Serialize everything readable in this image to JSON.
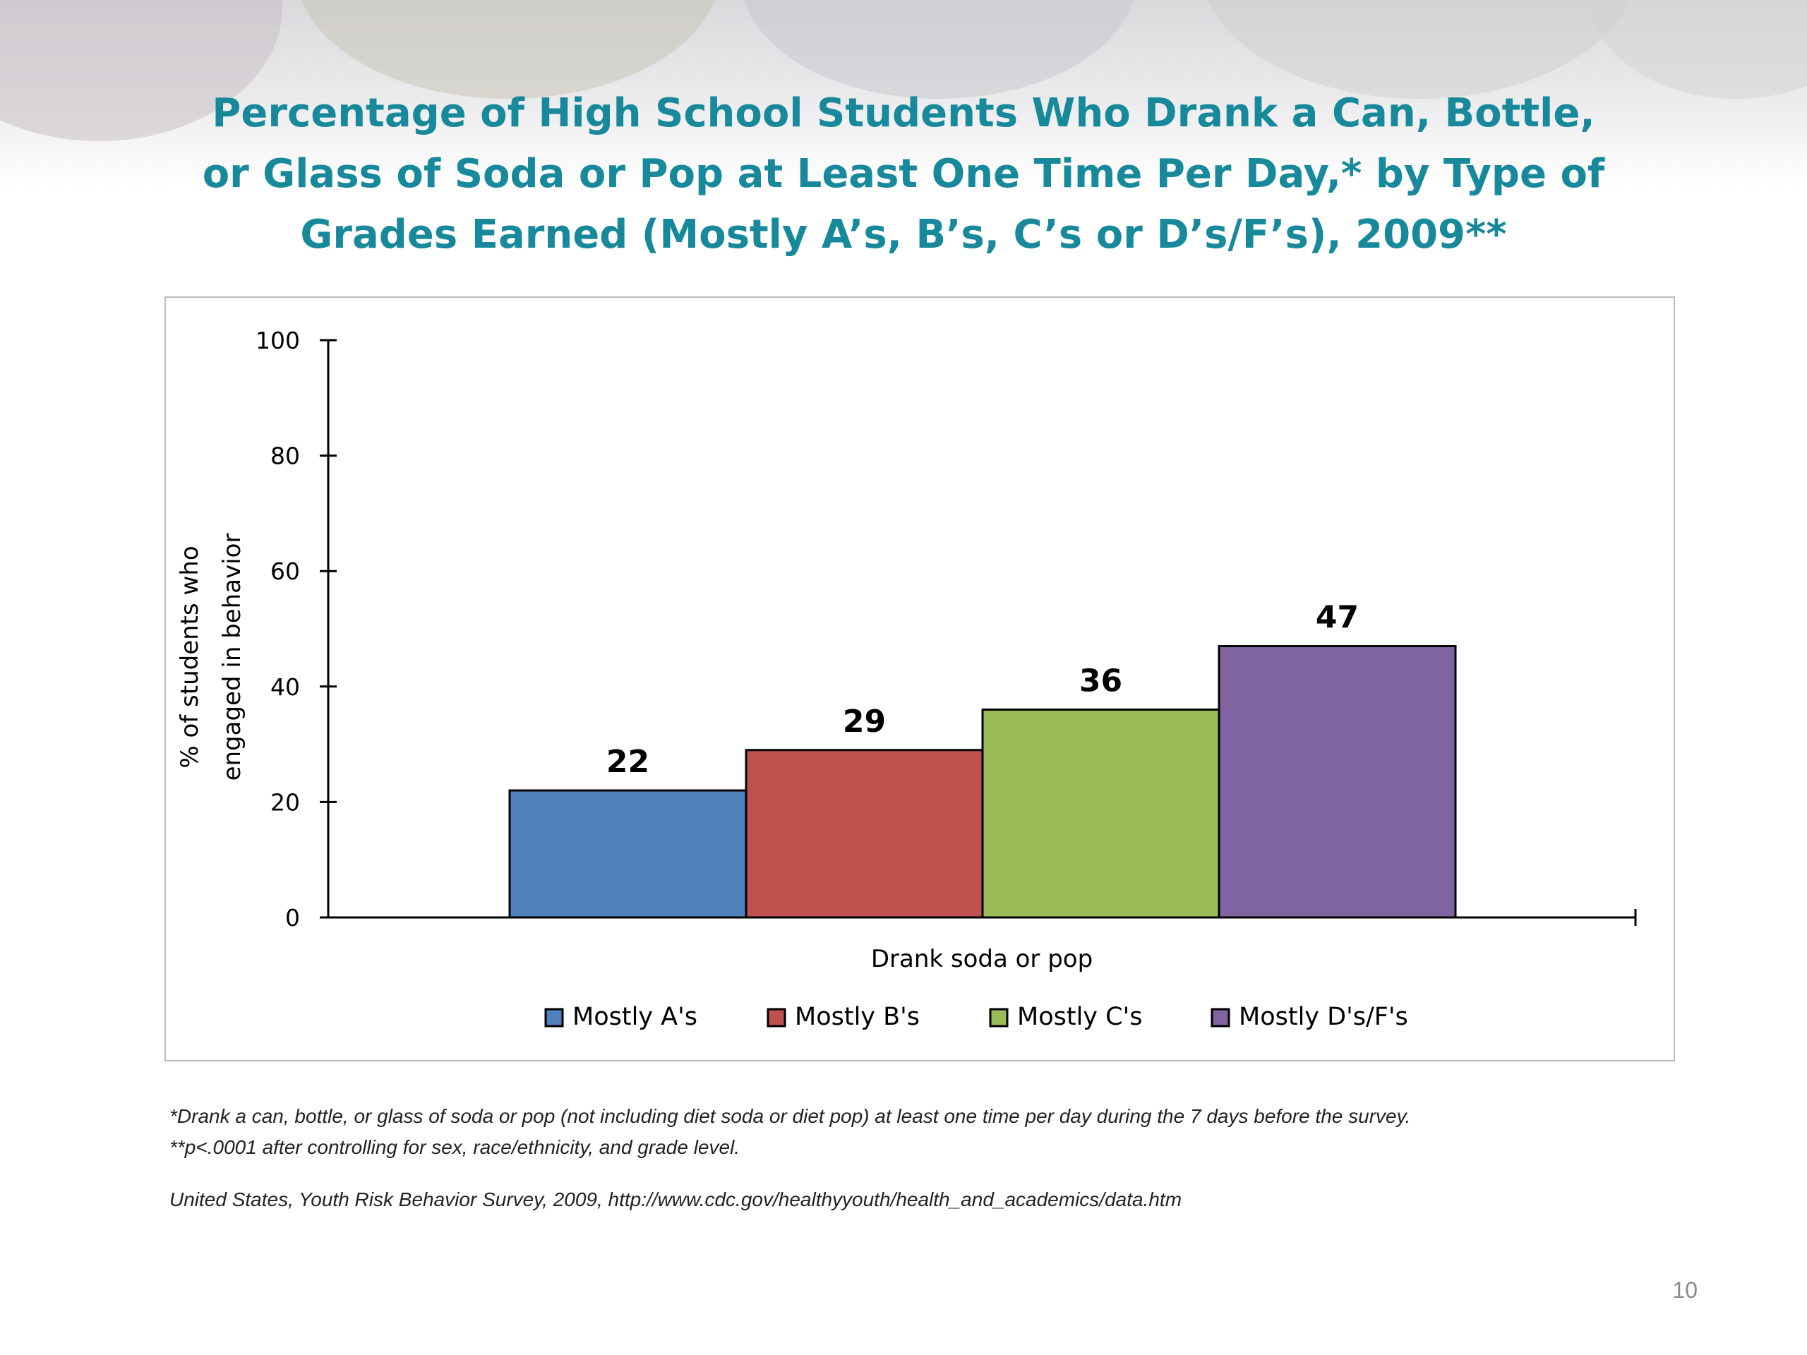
{
  "slide": {
    "title_lines": [
      "Percentage of High School Students Who Drank a Can, Bottle,",
      "or Glass of Soda or Pop at Least One Time Per Day,* by Type of",
      "Grades Earned (Mostly A’s, B’s, C’s or D’s/F’s), 2009**"
    ],
    "footnote_1": "*Drank a can, bottle, or glass of soda or pop (not including diet soda or diet pop) at least one time per day during the 7 days before the survey.",
    "footnote_2": "**p<.0001 after controlling for sex, race/ethnicity, and grade level.",
    "source": "United States, Youth Risk Behavior Survey, 2009, http://www.cdc.gov/healthyyouth/health_and_academics/data.htm",
    "page_number": "10"
  },
  "chart_data": {
    "type": "bar",
    "categories": [
      "Drank soda or pop"
    ],
    "series": [
      {
        "name": "Mostly A's",
        "values": [
          22
        ],
        "color": "#4f81bd"
      },
      {
        "name": "Mostly B's",
        "values": [
          29
        ],
        "color": "#c0504d"
      },
      {
        "name": "Mostly C's",
        "values": [
          36
        ],
        "color": "#9bbb59"
      },
      {
        "name": "Mostly D's/F's",
        "values": [
          47
        ],
        "color": "#8064a2"
      }
    ],
    "data_labels": [
      "22",
      "29",
      "36",
      "47"
    ],
    "xlabel": "Drank soda or pop",
    "ylabel_lines": [
      "% of students who",
      "engaged in behavior"
    ],
    "ylim": [
      0,
      100
    ],
    "yticks": [
      0,
      20,
      40,
      60,
      80,
      100
    ],
    "grid": false,
    "legend_position": "bottom"
  }
}
